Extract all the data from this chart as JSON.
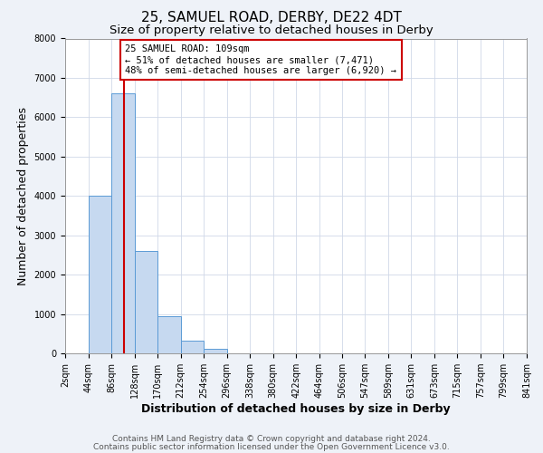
{
  "title": "25, SAMUEL ROAD, DERBY, DE22 4DT",
  "subtitle": "Size of property relative to detached houses in Derby",
  "xlabel": "Distribution of detached houses by size in Derby",
  "ylabel": "Number of detached properties",
  "bin_edges": [
    2,
    44,
    86,
    128,
    170,
    212,
    254,
    296,
    338,
    380,
    422,
    464,
    506,
    547,
    589,
    631,
    673,
    715,
    757,
    799,
    841
  ],
  "bar_heights": [
    0,
    4000,
    6600,
    2600,
    950,
    330,
    110,
    0,
    0,
    0,
    0,
    0,
    0,
    0,
    0,
    0,
    0,
    0,
    0,
    0
  ],
  "bar_color": "#c6d9f0",
  "bar_edge_color": "#5b9bd5",
  "property_size": 109,
  "vline_color": "#cc0000",
  "annotation_text": "25 SAMUEL ROAD: 109sqm\n← 51% of detached houses are smaller (7,471)\n48% of semi-detached houses are larger (6,920) →",
  "annotation_box_color": "#ffffff",
  "annotation_box_edge": "#cc0000",
  "ylim": [
    0,
    8000
  ],
  "yticks": [
    0,
    1000,
    2000,
    3000,
    4000,
    5000,
    6000,
    7000,
    8000
  ],
  "tick_labels": [
    "2sqm",
    "44sqm",
    "86sqm",
    "128sqm",
    "170sqm",
    "212sqm",
    "254sqm",
    "296sqm",
    "338sqm",
    "380sqm",
    "422sqm",
    "464sqm",
    "506sqm",
    "547sqm",
    "589sqm",
    "631sqm",
    "673sqm",
    "715sqm",
    "757sqm",
    "799sqm",
    "841sqm"
  ],
  "footer_line1": "Contains HM Land Registry data © Crown copyright and database right 2024.",
  "footer_line2": "Contains public sector information licensed under the Open Government Licence v3.0.",
  "bg_color": "#eef2f8",
  "plot_bg_color": "#ffffff",
  "grid_color": "#d0d8e8",
  "title_fontsize": 11,
  "subtitle_fontsize": 9.5,
  "axis_label_fontsize": 9,
  "tick_fontsize": 7,
  "footer_fontsize": 6.5,
  "annotation_fontsize": 7.5
}
